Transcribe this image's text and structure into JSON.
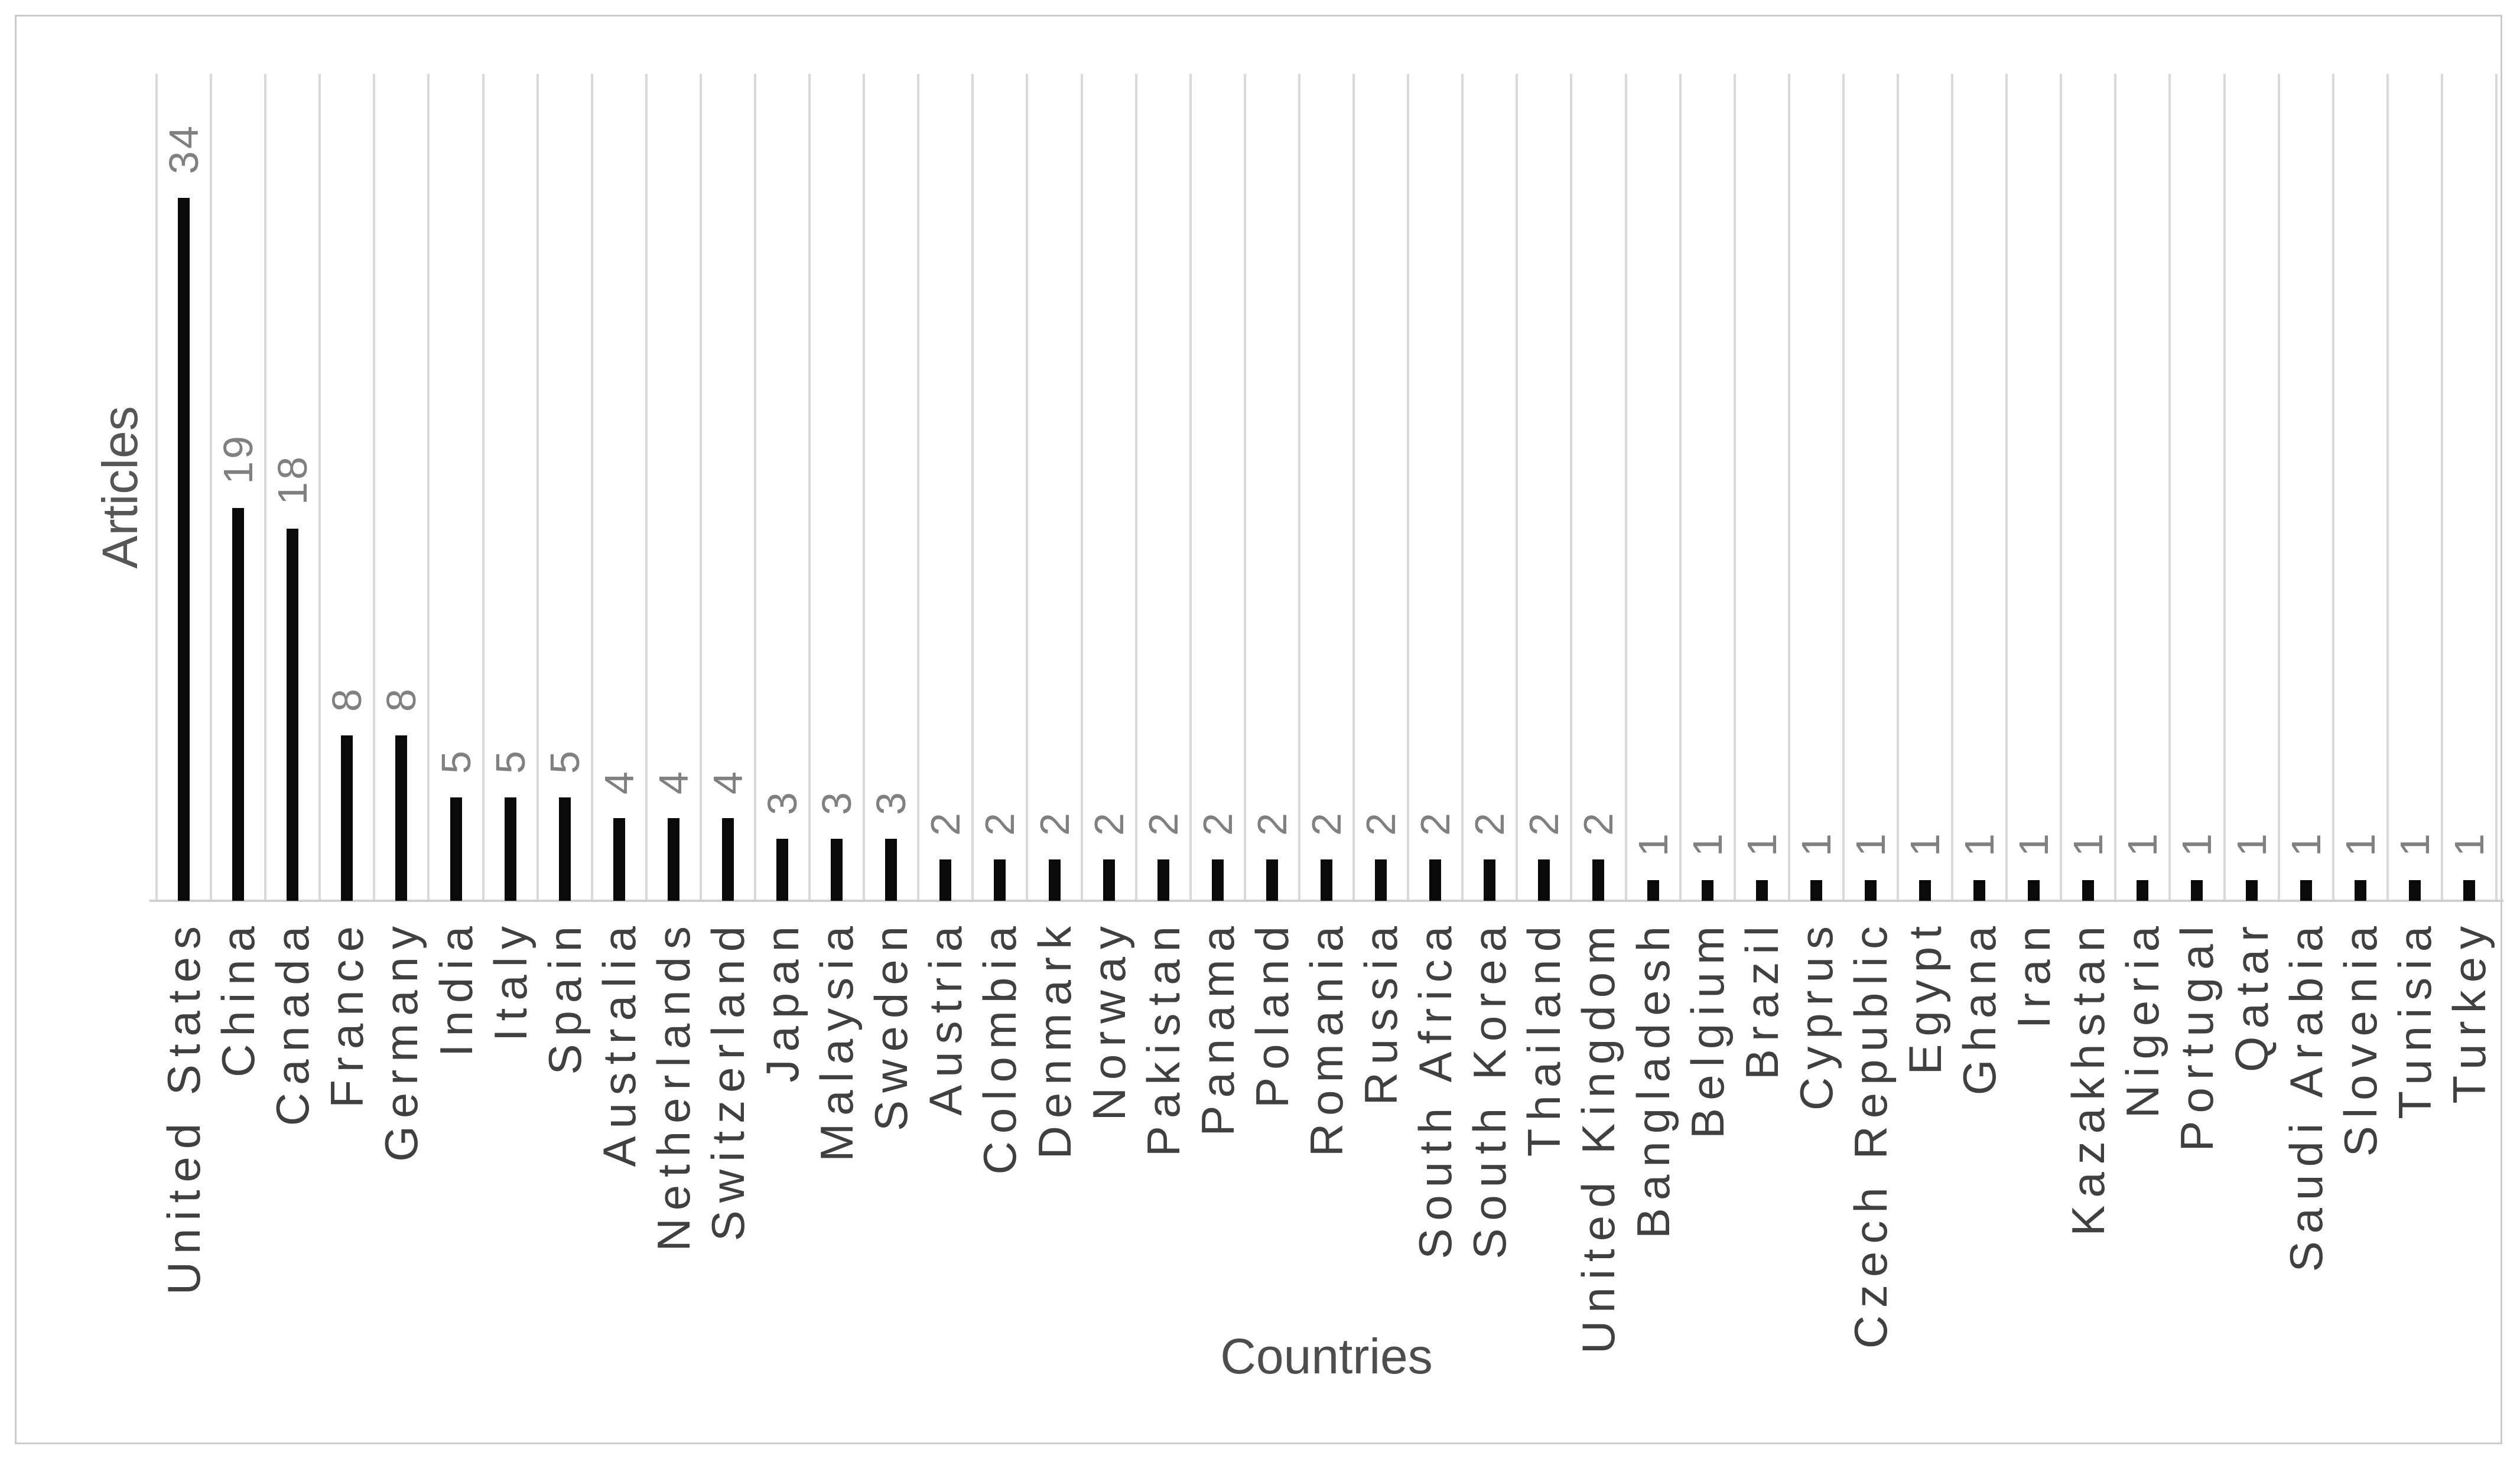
{
  "chart_data": {
    "type": "bar",
    "title": "",
    "xlabel": "Countries",
    "ylabel": "Articles",
    "categories": [
      "United States",
      "China",
      "Canada",
      "France",
      "Germany",
      "India",
      "Italy",
      "Spain",
      "Australia",
      "Netherlands",
      "Switzerland",
      "Japan",
      "Malaysia",
      "Sweden",
      "Austria",
      "Colombia",
      "Denmark",
      "Norway",
      "Pakistan",
      "Panama",
      "Poland",
      "Romania",
      "Russia",
      "South Africa",
      "South Korea",
      "Thailand",
      "United Kingdom",
      "Bangladesh",
      "Belgium",
      "Brazil",
      "Cyprus",
      "Czech Republic",
      "Egypt",
      "Ghana",
      "Iran",
      "Kazakhstan",
      "Nigeria",
      "Portugal",
      "Qatar",
      "Saudi Arabia",
      "Slovenia",
      "Tunisia",
      "Turkey"
    ],
    "values": [
      34,
      19,
      18,
      8,
      8,
      5,
      5,
      5,
      4,
      4,
      4,
      3,
      3,
      3,
      2,
      2,
      2,
      2,
      2,
      2,
      2,
      2,
      2,
      2,
      2,
      2,
      2,
      1,
      1,
      1,
      1,
      1,
      1,
      1,
      1,
      1,
      1,
      1,
      1,
      1,
      1,
      1,
      1
    ],
    "ylim": [
      0,
      40
    ],
    "grid": "vertical-category-gridlines",
    "legend": "none",
    "data_labels": "rotated-90-above-bars",
    "label_rotation": "bottom-to-top"
  },
  "colors": {
    "bar": "#0a0a0a",
    "gridline": "#d9d9d9",
    "axis_line": "#d0d0d0",
    "frame_border": "#cbcbcb",
    "value_label": "#808080",
    "category_label": "#404040",
    "axis_title": "#4d4d4d",
    "background": "#ffffff"
  }
}
